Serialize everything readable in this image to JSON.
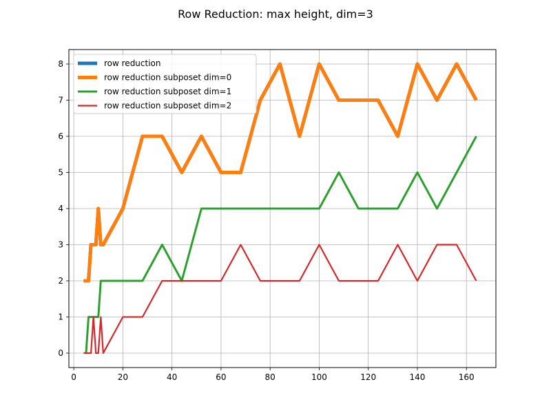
{
  "chart_data": {
    "type": "line",
    "title": "Row Reduction: max height, dim=3",
    "xlabel": "",
    "ylabel": "",
    "xlim": [
      -2.0,
      172.0
    ],
    "ylim": [
      -0.4,
      8.4
    ],
    "xticks": [
      0,
      20,
      40,
      60,
      80,
      100,
      120,
      140,
      160
    ],
    "yticks": [
      0,
      1,
      2,
      3,
      4,
      5,
      6,
      7,
      8
    ],
    "grid": true,
    "legend_position": "upper-left",
    "series": [
      {
        "name": "row reduction",
        "color": "#1f77b4",
        "points": [
          [
            4,
            2
          ],
          [
            6,
            2
          ],
          [
            7,
            3
          ],
          [
            9,
            3
          ],
          [
            10,
            4
          ],
          [
            11,
            3
          ],
          [
            12,
            3
          ],
          [
            20,
            4
          ],
          [
            28,
            6
          ],
          [
            36,
            6
          ],
          [
            44,
            5
          ],
          [
            52,
            6
          ],
          [
            60,
            5
          ],
          [
            68,
            5
          ],
          [
            76,
            7
          ],
          [
            84,
            8
          ],
          [
            92,
            6
          ],
          [
            100,
            8
          ],
          [
            108,
            7
          ],
          [
            116,
            7
          ],
          [
            124,
            7
          ],
          [
            132,
            6
          ],
          [
            140,
            8
          ],
          [
            148,
            7
          ],
          [
            156,
            8
          ],
          [
            164,
            7
          ]
        ]
      },
      {
        "name": "row reduction subposet dim=0",
        "color": "#ff7f0e",
        "points": [
          [
            4,
            2
          ],
          [
            6,
            2
          ],
          [
            7,
            3
          ],
          [
            9,
            3
          ],
          [
            10,
            4
          ],
          [
            11,
            3
          ],
          [
            12,
            3
          ],
          [
            20,
            4
          ],
          [
            28,
            6
          ],
          [
            36,
            6
          ],
          [
            44,
            5
          ],
          [
            52,
            6
          ],
          [
            60,
            5
          ],
          [
            68,
            5
          ],
          [
            76,
            7
          ],
          [
            84,
            8
          ],
          [
            92,
            6
          ],
          [
            100,
            8
          ],
          [
            108,
            7
          ],
          [
            116,
            7
          ],
          [
            124,
            7
          ],
          [
            132,
            6
          ],
          [
            140,
            8
          ],
          [
            148,
            7
          ],
          [
            156,
            8
          ],
          [
            164,
            7
          ]
        ]
      },
      {
        "name": "row reduction subposet dim=1",
        "color": "#2ca02c",
        "points": [
          [
            5,
            0
          ],
          [
            6,
            1
          ],
          [
            10,
            1
          ],
          [
            11,
            2
          ],
          [
            20,
            2
          ],
          [
            28,
            2
          ],
          [
            36,
            3
          ],
          [
            44,
            2
          ],
          [
            52,
            4
          ],
          [
            60,
            4
          ],
          [
            68,
            4
          ],
          [
            76,
            4
          ],
          [
            84,
            4
          ],
          [
            92,
            4
          ],
          [
            100,
            4
          ],
          [
            108,
            5
          ],
          [
            116,
            4
          ],
          [
            124,
            4
          ],
          [
            132,
            4
          ],
          [
            140,
            5
          ],
          [
            148,
            4
          ],
          [
            156,
            5
          ],
          [
            164,
            6
          ]
        ]
      },
      {
        "name": "row reduction subposet dim=2",
        "color": "#d62728",
        "points": [
          [
            4,
            0
          ],
          [
            7,
            0
          ],
          [
            8,
            1
          ],
          [
            9,
            0
          ],
          [
            10,
            0
          ],
          [
            11,
            1
          ],
          [
            12,
            0
          ],
          [
            20,
            1
          ],
          [
            28,
            1
          ],
          [
            36,
            2
          ],
          [
            44,
            2
          ],
          [
            52,
            2
          ],
          [
            60,
            2
          ],
          [
            68,
            3
          ],
          [
            76,
            2
          ],
          [
            84,
            2
          ],
          [
            92,
            2
          ],
          [
            100,
            3
          ],
          [
            108,
            2
          ],
          [
            116,
            2
          ],
          [
            124,
            2
          ],
          [
            132,
            3
          ],
          [
            140,
            2
          ],
          [
            148,
            3
          ],
          [
            156,
            3
          ],
          [
            164,
            2
          ]
        ]
      }
    ]
  }
}
